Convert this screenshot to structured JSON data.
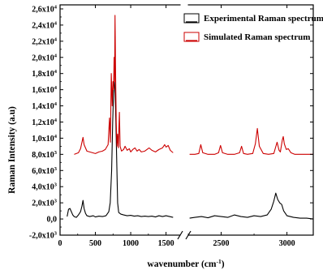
{
  "chart_data": {
    "type": "line",
    "xlabel": "wavenumber (cm",
    "xlabel_sup": "-1",
    "xlabel_close": ")",
    "ylabel": "Raman Intensity (a.u)",
    "ylim": [
      -2000,
      26500
    ],
    "y_ticks": [
      {
        "value": 26000,
        "mant": "2,6x10",
        "exp": "4"
      },
      {
        "value": 24000,
        "mant": "2,4x10",
        "exp": "4"
      },
      {
        "value": 22000,
        "mant": "2,2x10",
        "exp": "4"
      },
      {
        "value": 20000,
        "mant": "2,0x10",
        "exp": "4"
      },
      {
        "value": 18000,
        "mant": "1,8x10",
        "exp": "4"
      },
      {
        "value": 16000,
        "mant": "1,6x10",
        "exp": "4"
      },
      {
        "value": 14000,
        "mant": "1,4x10",
        "exp": "4"
      },
      {
        "value": 12000,
        "mant": "1,2x10",
        "exp": "4"
      },
      {
        "value": 10000,
        "mant": "1,0x10",
        "exp": "4"
      },
      {
        "value": 8000,
        "mant": "8,0x10",
        "exp": "3"
      },
      {
        "value": 6000,
        "mant": "6,0x10",
        "exp": "3"
      },
      {
        "value": 4000,
        "mant": "4,0x10",
        "exp": "3"
      },
      {
        "value": 2000,
        "mant": "2,0x10",
        "exp": "3"
      },
      {
        "value": 0,
        "mant": "0,0",
        "exp": ""
      },
      {
        "value": -2000,
        "mant": "-2,0x10",
        "exp": "3"
      }
    ],
    "x_segments": [
      {
        "xlim": [
          0,
          1700
        ],
        "ticks": [
          0,
          500,
          1000,
          1500
        ],
        "tick_labels": [
          "0",
          "500",
          "1000",
          "1500"
        ]
      },
      {
        "xlim": [
          2250,
          3200
        ],
        "ticks": [
          2500,
          3000
        ],
        "tick_labels": [
          "2500",
          "3000"
        ]
      }
    ],
    "legend": {
      "position": "top-right"
    },
    "series": [
      {
        "name": "Experimental Raman spectrum",
        "color": "#000000",
        "segments": [
          [
            [
              100,
              300
            ],
            [
              120,
              1200
            ],
            [
              140,
              1300
            ],
            [
              160,
              900
            ],
            [
              180,
              500
            ],
            [
              200,
              300
            ],
            [
              230,
              200
            ],
            [
              260,
              500
            ],
            [
              290,
              900
            ],
            [
              310,
              1600
            ],
            [
              325,
              2300
            ],
            [
              340,
              1300
            ],
            [
              360,
              700
            ],
            [
              380,
              400
            ],
            [
              420,
              300
            ],
            [
              470,
              400
            ],
            [
              500,
              250
            ],
            [
              550,
              350
            ],
            [
              600,
              300
            ],
            [
              650,
              400
            ],
            [
              690,
              900
            ],
            [
              710,
              2000
            ],
            [
              730,
              6000
            ],
            [
              745,
              12000
            ],
            [
              760,
              16500
            ],
            [
              770,
              17000
            ],
            [
              780,
              15500
            ],
            [
              790,
              12000
            ],
            [
              805,
              6000
            ],
            [
              815,
              2000
            ],
            [
              830,
              800
            ],
            [
              860,
              600
            ],
            [
              900,
              500
            ],
            [
              950,
              400
            ],
            [
              1000,
              450
            ],
            [
              1050,
              350
            ],
            [
              1100,
              400
            ],
            [
              1150,
              300
            ],
            [
              1200,
              350
            ],
            [
              1250,
              300
            ],
            [
              1300,
              350
            ],
            [
              1350,
              250
            ],
            [
              1400,
              400
            ],
            [
              1450,
              300
            ],
            [
              1500,
              400
            ],
            [
              1550,
              300
            ],
            [
              1600,
              200
            ]
          ],
          [
            [
              2260,
              100
            ],
            [
              2300,
              200
            ],
            [
              2350,
              300
            ],
            [
              2400,
              150
            ],
            [
              2450,
              400
            ],
            [
              2500,
              300
            ],
            [
              2550,
              200
            ],
            [
              2600,
              500
            ],
            [
              2650,
              300
            ],
            [
              2700,
              200
            ],
            [
              2750,
              400
            ],
            [
              2800,
              300
            ],
            [
              2850,
              500
            ],
            [
              2880,
              1200
            ],
            [
              2900,
              2200
            ],
            [
              2915,
              3200
            ],
            [
              2930,
              2400
            ],
            [
              2945,
              2000
            ],
            [
              2960,
              1800
            ],
            [
              2975,
              1000
            ],
            [
              3000,
              400
            ],
            [
              3050,
              200
            ],
            [
              3100,
              100
            ],
            [
              3150,
              100
            ],
            [
              3200,
              0
            ]
          ]
        ]
      },
      {
        "name": "Simulated Raman spectrum",
        "color": "#cc0000",
        "segments": [
          [
            [
              200,
              8000
            ],
            [
              260,
              8200
            ],
            [
              290,
              8700
            ],
            [
              310,
              9500
            ],
            [
              325,
              10100
            ],
            [
              340,
              9200
            ],
            [
              360,
              8800
            ],
            [
              380,
              8400
            ],
            [
              420,
              8300
            ],
            [
              460,
              8200
            ],
            [
              500,
              8100
            ],
            [
              550,
              8300
            ],
            [
              600,
              8400
            ],
            [
              640,
              8600
            ],
            [
              680,
              9200
            ],
            [
              700,
              12500
            ],
            [
              712,
              9500
            ],
            [
              725,
              18000
            ],
            [
              738,
              14000
            ],
            [
              748,
              17000
            ],
            [
              758,
              16000
            ],
            [
              765,
              20000
            ],
            [
              772,
              17000
            ],
            [
              778,
              25200
            ],
            [
              786,
              18000
            ],
            [
              795,
              12000
            ],
            [
              805,
              9000
            ],
            [
              815,
              10500
            ],
            [
              825,
              8800
            ],
            [
              840,
              13200
            ],
            [
              850,
              9000
            ],
            [
              870,
              8400
            ],
            [
              900,
              8600
            ],
            [
              920,
              9000
            ],
            [
              950,
              8500
            ],
            [
              980,
              8700
            ],
            [
              1000,
              8300
            ],
            [
              1030,
              8600
            ],
            [
              1060,
              8800
            ],
            [
              1090,
              8400
            ],
            [
              1120,
              8600
            ],
            [
              1150,
              8300
            ],
            [
              1200,
              8400
            ],
            [
              1260,
              8800
            ],
            [
              1300,
              8500
            ],
            [
              1350,
              8300
            ],
            [
              1400,
              8600
            ],
            [
              1450,
              8800
            ],
            [
              1480,
              9200
            ],
            [
              1500,
              8900
            ],
            [
              1530,
              9100
            ],
            [
              1560,
              8500
            ],
            [
              1600,
              8200
            ]
          ],
          [
            [
              2260,
              8000
            ],
            [
              2300,
              8000
            ],
            [
              2330,
              8100
            ],
            [
              2345,
              9200
            ],
            [
              2360,
              8200
            ],
            [
              2400,
              8000
            ],
            [
              2450,
              8000
            ],
            [
              2480,
              8200
            ],
            [
              2495,
              9100
            ],
            [
              2510,
              8200
            ],
            [
              2550,
              8000
            ],
            [
              2600,
              8000
            ],
            [
              2640,
              8200
            ],
            [
              2655,
              9000
            ],
            [
              2670,
              8100
            ],
            [
              2700,
              8000
            ],
            [
              2740,
              8100
            ],
            [
              2760,
              9300
            ],
            [
              2775,
              11200
            ],
            [
              2790,
              9000
            ],
            [
              2820,
              8100
            ],
            [
              2860,
              8000
            ],
            [
              2900,
              8100
            ],
            [
              2925,
              9500
            ],
            [
              2940,
              8500
            ],
            [
              2950,
              8300
            ],
            [
              2965,
              9800
            ],
            [
              2972,
              10200
            ],
            [
              2980,
              9300
            ],
            [
              2995,
              8600
            ],
            [
              3010,
              8700
            ],
            [
              3030,
              8200
            ],
            [
              3060,
              8000
            ],
            [
              3100,
              8000
            ],
            [
              3150,
              8000
            ],
            [
              3200,
              8000
            ]
          ]
        ]
      }
    ]
  }
}
